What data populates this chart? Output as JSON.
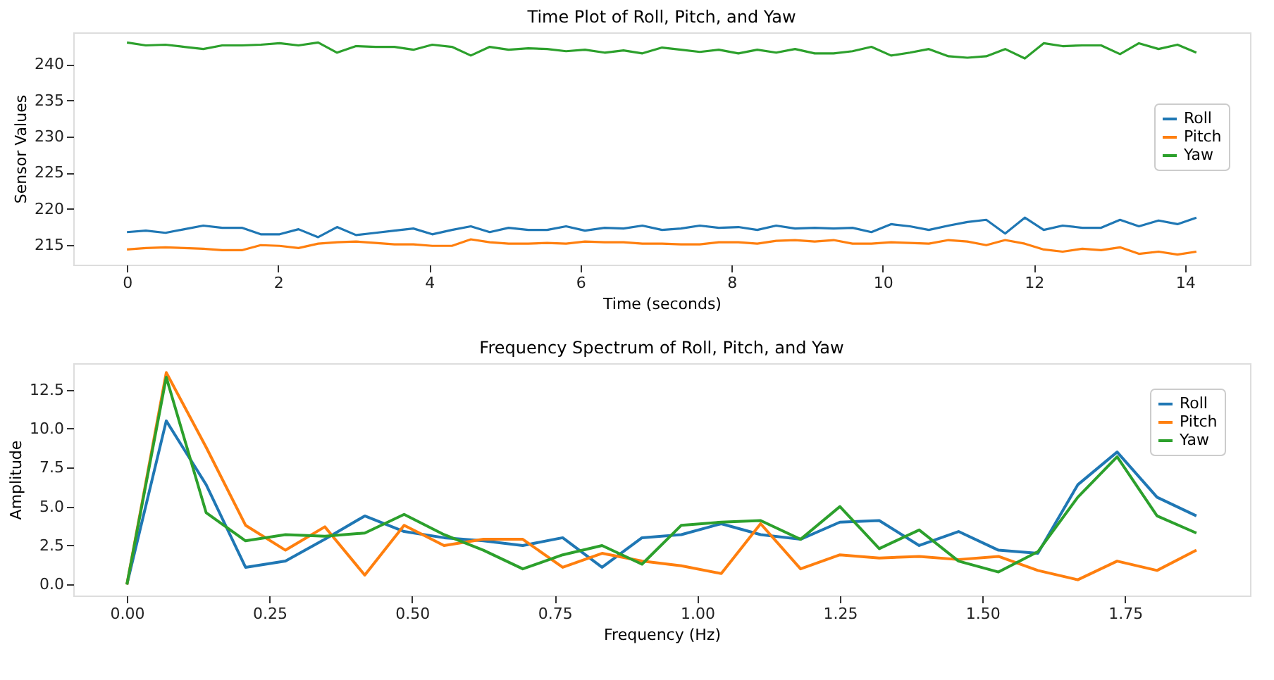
{
  "chart_data": [
    {
      "type": "line",
      "title": "Time Plot of Roll, Pitch, and Yaw",
      "xlabel": "Time (seconds)",
      "ylabel": "Sensor Values",
      "x": [
        0,
        0.25,
        0.51,
        0.76,
        1.01,
        1.26,
        1.52,
        1.77,
        2.02,
        2.27,
        2.53,
        2.78,
        3.03,
        3.29,
        3.54,
        3.79,
        4.04,
        4.3,
        4.55,
        4.8,
        5.05,
        5.31,
        5.56,
        5.81,
        6.06,
        6.32,
        6.57,
        6.82,
        7.08,
        7.33,
        7.58,
        7.83,
        8.09,
        8.34,
        8.59,
        8.84,
        9.1,
        9.35,
        9.6,
        9.85,
        10.11,
        10.36,
        10.61,
        10.87,
        11.12,
        11.37,
        11.62,
        11.88,
        12.13,
        12.38,
        12.64,
        12.89,
        13.14,
        13.39,
        13.65,
        13.9,
        14.15
      ],
      "series": [
        {
          "name": "Roll",
          "color": "#1f77b4",
          "values": [
            216.8,
            217.0,
            216.7,
            217.2,
            217.7,
            217.4,
            217.4,
            216.5,
            216.5,
            217.2,
            216.1,
            217.5,
            216.4,
            216.7,
            217.0,
            217.3,
            216.5,
            217.1,
            217.6,
            216.8,
            217.4,
            217.1,
            217.1,
            217.6,
            217.0,
            217.4,
            217.3,
            217.7,
            217.1,
            217.3,
            217.7,
            217.4,
            217.5,
            217.1,
            217.7,
            217.3,
            217.4,
            217.3,
            217.4,
            216.8,
            217.9,
            217.6,
            217.1,
            217.7,
            218.2,
            218.5,
            216.6,
            218.8,
            217.1,
            217.7,
            217.4,
            217.4,
            218.5,
            217.6,
            218.4,
            217.9,
            218.8
          ]
        },
        {
          "name": "Pitch",
          "color": "#ff7f0e",
          "values": [
            214.4,
            214.6,
            214.7,
            214.6,
            214.5,
            214.3,
            214.3,
            215.0,
            214.9,
            214.6,
            215.2,
            215.4,
            215.5,
            215.3,
            215.1,
            215.1,
            214.9,
            214.9,
            215.8,
            215.4,
            215.2,
            215.2,
            215.3,
            215.2,
            215.5,
            215.4,
            215.4,
            215.2,
            215.2,
            215.1,
            215.1,
            215.4,
            215.4,
            215.2,
            215.6,
            215.7,
            215.5,
            215.7,
            215.2,
            215.2,
            215.4,
            215.3,
            215.2,
            215.7,
            215.5,
            215.0,
            215.7,
            215.2,
            214.4,
            214.1,
            214.5,
            214.3,
            214.7,
            213.8,
            214.1,
            213.7,
            214.1
          ]
        },
        {
          "name": "Yaw",
          "color": "#2ca02c",
          "values": [
            243.0,
            242.6,
            242.7,
            242.4,
            242.1,
            242.6,
            242.6,
            242.7,
            242.9,
            242.6,
            243.0,
            241.6,
            242.5,
            242.4,
            242.4,
            242.0,
            242.7,
            242.4,
            241.2,
            242.4,
            242.0,
            242.2,
            242.1,
            241.8,
            242.0,
            241.6,
            241.9,
            241.5,
            242.3,
            242.0,
            241.7,
            242.0,
            241.5,
            242.0,
            241.6,
            242.1,
            241.5,
            241.5,
            241.8,
            242.4,
            241.2,
            241.6,
            242.1,
            241.1,
            240.9,
            241.1,
            242.1,
            240.8,
            242.9,
            242.5,
            242.6,
            242.6,
            241.4,
            242.9,
            242.1,
            242.7,
            241.6
          ]
        }
      ],
      "xlim": [
        -0.71,
        14.86
      ],
      "xticks": [
        0,
        2,
        4,
        6,
        8,
        10,
        12,
        14
      ],
      "ylim": [
        212.3,
        244.4
      ],
      "yticks": [
        215,
        220,
        225,
        230,
        235,
        240
      ],
      "grid": false,
      "legend": "right",
      "line_style": "solid",
      "marker": "none"
    },
    {
      "type": "line",
      "title": "Frequency Spectrum of Roll, Pitch, and Yaw",
      "xlabel": "Frequency (Hz)",
      "ylabel": "Amplitude",
      "x": [
        0,
        0.069,
        0.139,
        0.208,
        0.278,
        0.347,
        0.417,
        0.486,
        0.556,
        0.625,
        0.694,
        0.764,
        0.833,
        0.903,
        0.972,
        1.042,
        1.111,
        1.181,
        1.25,
        1.319,
        1.389,
        1.458,
        1.528,
        1.597,
        1.667,
        1.736,
        1.806,
        1.875
      ],
      "series": [
        {
          "name": "Roll",
          "color": "#1f77b4",
          "values": [
            0,
            10.5,
            6.4,
            1.1,
            1.5,
            2.9,
            4.4,
            3.4,
            3.0,
            2.8,
            2.5,
            3.0,
            1.1,
            3.0,
            3.2,
            3.9,
            3.2,
            2.9,
            4.0,
            4.1,
            2.5,
            3.4,
            2.2,
            2.0,
            6.4,
            8.5,
            5.6,
            4.4
          ]
        },
        {
          "name": "Pitch",
          "color": "#ff7f0e",
          "values": [
            0,
            13.6,
            8.8,
            3.8,
            2.2,
            3.7,
            0.6,
            3.8,
            2.5,
            2.9,
            2.9,
            1.1,
            2.0,
            1.5,
            1.2,
            0.7,
            3.9,
            1.0,
            1.9,
            1.7,
            1.8,
            1.6,
            1.8,
            0.9,
            0.3,
            1.5,
            0.9,
            2.2
          ]
        },
        {
          "name": "Yaw",
          "color": "#2ca02c",
          "values": [
            0,
            13.3,
            4.6,
            2.8,
            3.2,
            3.1,
            3.3,
            4.5,
            3.2,
            2.2,
            1.0,
            1.9,
            2.5,
            1.3,
            3.8,
            4.0,
            4.1,
            2.9,
            5.0,
            2.3,
            3.5,
            1.5,
            0.8,
            2.1,
            5.6,
            8.2,
            4.4,
            3.3
          ]
        }
      ],
      "xlim": [
        -0.094,
        1.969
      ],
      "xticks": [
        {
          "value": 0,
          "label": "0.00"
        },
        {
          "value": 0.25,
          "label": "0.25"
        },
        {
          "value": 0.5,
          "label": "0.50"
        },
        {
          "value": 0.75,
          "label": "0.75"
        },
        {
          "value": 1,
          "label": "1.00"
        },
        {
          "value": 1.25,
          "label": "1.25"
        },
        {
          "value": 1.5,
          "label": "1.50"
        },
        {
          "value": 1.75,
          "label": "1.75"
        }
      ],
      "ylim": [
        -0.71,
        14.2
      ],
      "yticks": [
        {
          "value": 0,
          "label": "0.0"
        },
        {
          "value": 2.5,
          "label": "2.5"
        },
        {
          "value": 5,
          "label": "5.0"
        },
        {
          "value": 7.5,
          "label": "7.5"
        },
        {
          "value": 10,
          "label": "10.0"
        },
        {
          "value": 12.5,
          "label": "12.5"
        }
      ],
      "grid": false,
      "legend": "top right",
      "line_style": "solid",
      "marker": "none"
    }
  ]
}
